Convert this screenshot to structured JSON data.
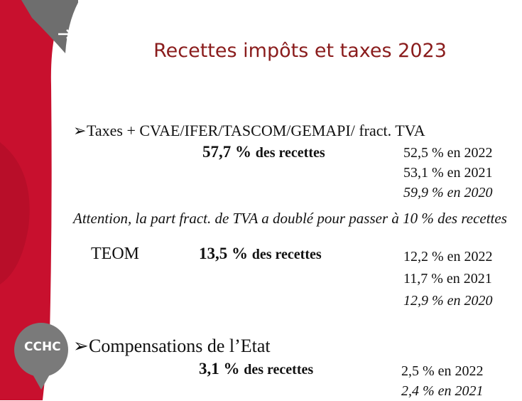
{
  "title": "Recettes impôts et taxes 2023",
  "logo": "CCHC",
  "sections": [
    {
      "heading": "Taxes + CVAE/IFER/TASCOM/GEMAPI/ fract. TVA",
      "share": "57,7 %",
      "share_text": "des recettes",
      "history": [
        "52,5 % en 2022",
        "53,1 % en 2021",
        "59,9 % en 2020"
      ],
      "note": "Attention, la part fract. de TVA a doublé pour passer à 10 % des recettes"
    },
    {
      "heading": "TEOM",
      "share": "13,5 %",
      "share_text": "des recettes",
      "history": [
        "12,2 % en 2022",
        "11,7 % en 2021",
        "12,9 % en 2020"
      ]
    },
    {
      "heading": "Compensations de l’Etat",
      "share": "3,1 %",
      "share_text": "des recettes",
      "history": [
        "2,5 % en 2022",
        "2,4 % en 2021"
      ]
    }
  ]
}
